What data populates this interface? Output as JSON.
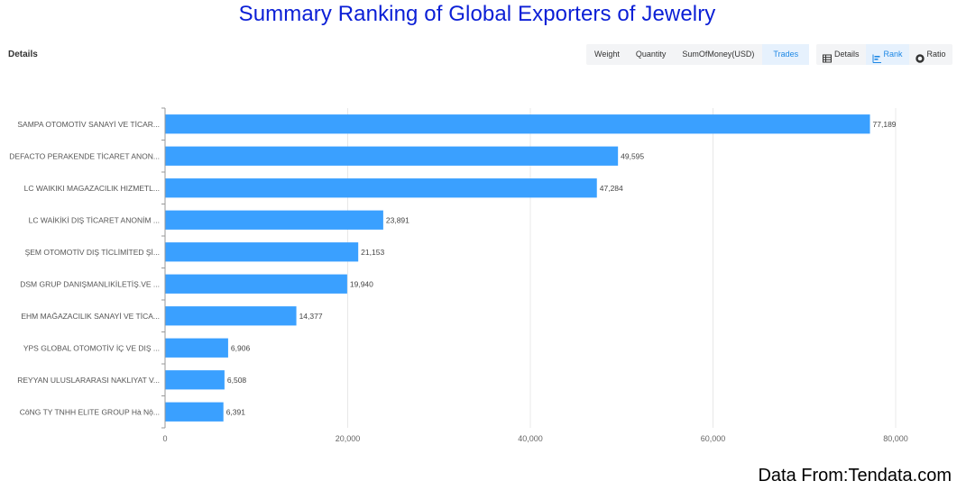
{
  "title": "Summary Ranking of Global Exporters of Jewelry",
  "section_label": "Details",
  "metric_tabs": [
    {
      "label": "Weight",
      "active": false
    },
    {
      "label": "Quantity",
      "active": false
    },
    {
      "label": "SumOfMoney(USD)",
      "active": false
    },
    {
      "label": "Trades",
      "active": true
    }
  ],
  "view_tabs": [
    {
      "label": "Details",
      "icon": "table-icon",
      "active": false
    },
    {
      "label": "Rank",
      "icon": "bar-rank-icon",
      "active": true
    },
    {
      "label": "Ratio",
      "icon": "donut-icon",
      "active": false
    }
  ],
  "footer": "Data From:Tendata.com",
  "colors": {
    "bar": "#3aa0ff",
    "title": "#0b1fd6",
    "active_tab": "#1e88e5"
  },
  "chart_data": {
    "type": "bar",
    "orientation": "horizontal",
    "title": "Summary Ranking of Global Exporters of Jewelry",
    "xlabel": "",
    "ylabel": "",
    "xlim": [
      0,
      80000
    ],
    "xticks": [
      "0",
      "20,000",
      "40,000",
      "60,000",
      "80,000"
    ],
    "grid": true,
    "categories": [
      "SAMPA OTOMOTİV SANAYİ VE TİCAR...",
      "DEFACTO PERAKENDE TİCARET ANON...",
      "LC WAIKIKI MAGAZACILIK HIZMETL...",
      "LC WAİKİKİ DIŞ TİCARET ANONİM ...",
      "ŞEM OTOMOTİV DIŞ TİCLİMİTED Şİ...",
      "DSM GRUP DANIŞMANLIKİLETİŞ.VE ...",
      "EHM MAĞAZACILIK SANAYİ VE TİCA...",
      "YPS GLOBAL OTOMOTİV İÇ VE DIŞ ...",
      "REYYAN ULUSLARARASI NAKLIYAT V...",
      "CôNG TY TNHH ELITE GROUP Hà Nộ..."
    ],
    "values": [
      77189,
      49595,
      47284,
      23891,
      21153,
      19940,
      14377,
      6906,
      6508,
      6391
    ],
    "value_labels": [
      "77,189",
      "49,595",
      "47,284",
      "23,891",
      "21,153",
      "19,940",
      "14,377",
      "6,906",
      "6,508",
      "6,391"
    ]
  }
}
